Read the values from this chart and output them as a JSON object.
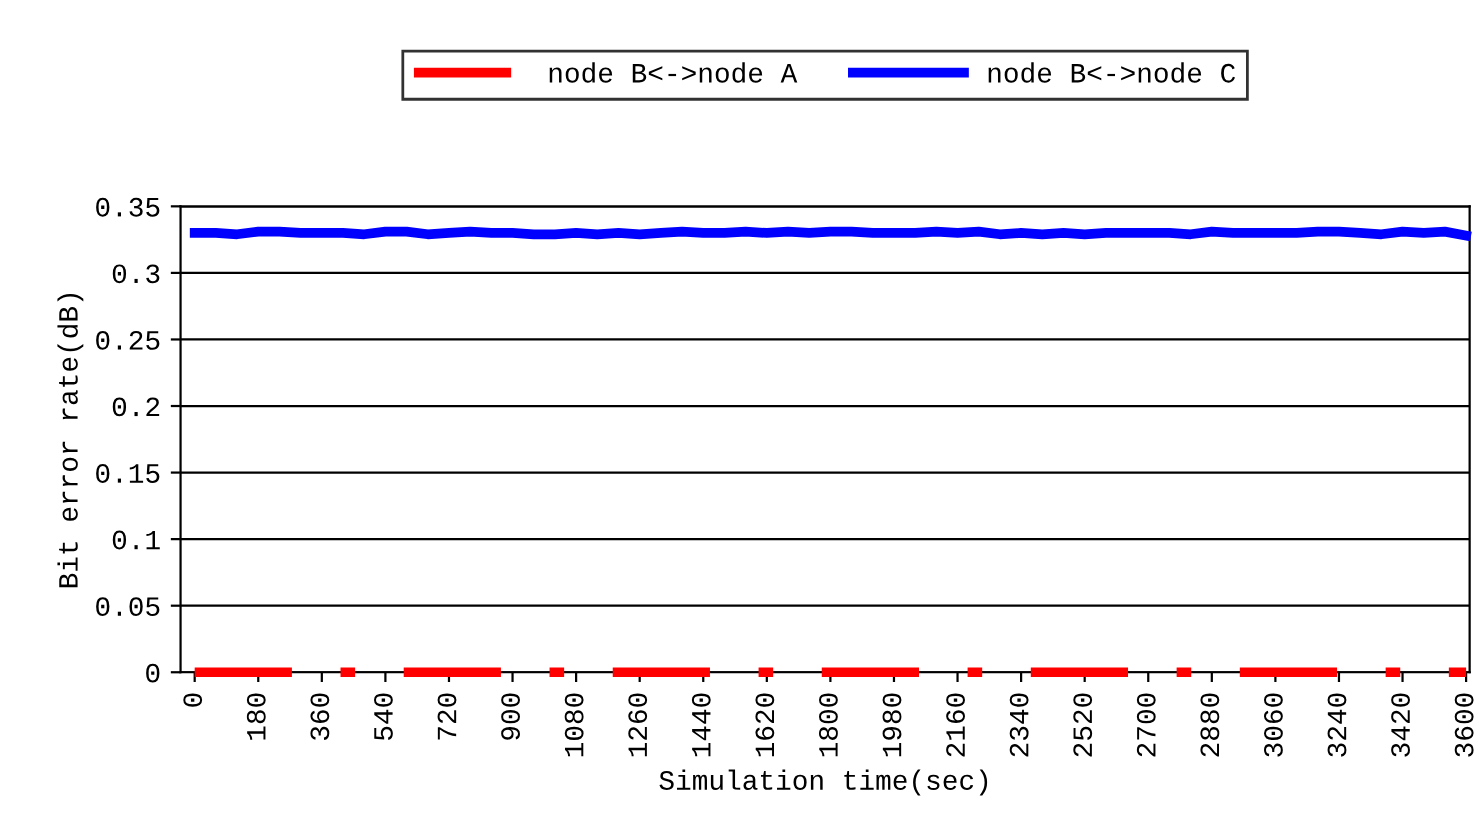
{
  "chart_data": {
    "type": "line",
    "xlabel": "Simulation time(sec)",
    "ylabel": "Bit error rate(dB)",
    "x": [
      0,
      60,
      120,
      180,
      240,
      300,
      360,
      420,
      480,
      540,
      600,
      660,
      720,
      780,
      840,
      900,
      960,
      1020,
      1080,
      1140,
      1200,
      1260,
      1320,
      1380,
      1440,
      1500,
      1560,
      1620,
      1680,
      1740,
      1800,
      1860,
      1920,
      1980,
      2040,
      2100,
      2160,
      2220,
      2280,
      2340,
      2400,
      2460,
      2520,
      2580,
      2640,
      2700,
      2760,
      2820,
      2880,
      2940,
      3000,
      3060,
      3120,
      3180,
      3240,
      3300,
      3360,
      3420,
      3480,
      3540,
      3600
    ],
    "series": [
      {
        "name": "node B<->node A",
        "color": "#ff0000",
        "line_style": "dashed",
        "values": [
          0,
          0,
          0,
          0,
          0,
          0,
          0,
          0,
          0,
          0,
          0,
          0,
          0,
          0,
          0,
          0,
          0,
          0,
          0,
          0,
          0,
          0,
          0,
          0,
          0,
          0,
          0,
          0,
          0,
          0,
          0,
          0,
          0,
          0,
          0,
          0,
          0,
          0,
          0,
          0,
          0,
          0,
          0,
          0,
          0,
          0,
          0,
          0,
          0,
          0,
          0,
          0,
          0,
          0,
          0,
          0,
          0,
          0,
          0,
          0,
          0
        ]
      },
      {
        "name": "node B<->node C",
        "color": "#0000ff",
        "line_style": "solid",
        "values": [
          0.33,
          0.33,
          0.329,
          0.331,
          0.331,
          0.33,
          0.33,
          0.33,
          0.329,
          0.331,
          0.331,
          0.329,
          0.33,
          0.331,
          0.33,
          0.33,
          0.329,
          0.329,
          0.33,
          0.329,
          0.33,
          0.329,
          0.33,
          0.331,
          0.33,
          0.33,
          0.331,
          0.33,
          0.331,
          0.33,
          0.331,
          0.331,
          0.33,
          0.33,
          0.33,
          0.331,
          0.33,
          0.331,
          0.329,
          0.33,
          0.329,
          0.33,
          0.329,
          0.33,
          0.33,
          0.33,
          0.33,
          0.329,
          0.331,
          0.33,
          0.33,
          0.33,
          0.33,
          0.331,
          0.331,
          0.33,
          0.329,
          0.331,
          0.33,
          0.331,
          0.328
        ]
      }
    ],
    "xlim": [
      -40,
      3610
    ],
    "xticks": [
      0,
      180,
      360,
      540,
      720,
      900,
      1080,
      1260,
      1440,
      1620,
      1800,
      1980,
      2160,
      2340,
      2520,
      2700,
      2880,
      3060,
      3240,
      3420,
      3600
    ],
    "ylim": [
      0,
      0.35
    ],
    "yticks": [
      0,
      0.05,
      0.1,
      0.15,
      0.2,
      0.25,
      0.3,
      0.35
    ],
    "grid": "y",
    "legend": "top",
    "marker": "none"
  }
}
